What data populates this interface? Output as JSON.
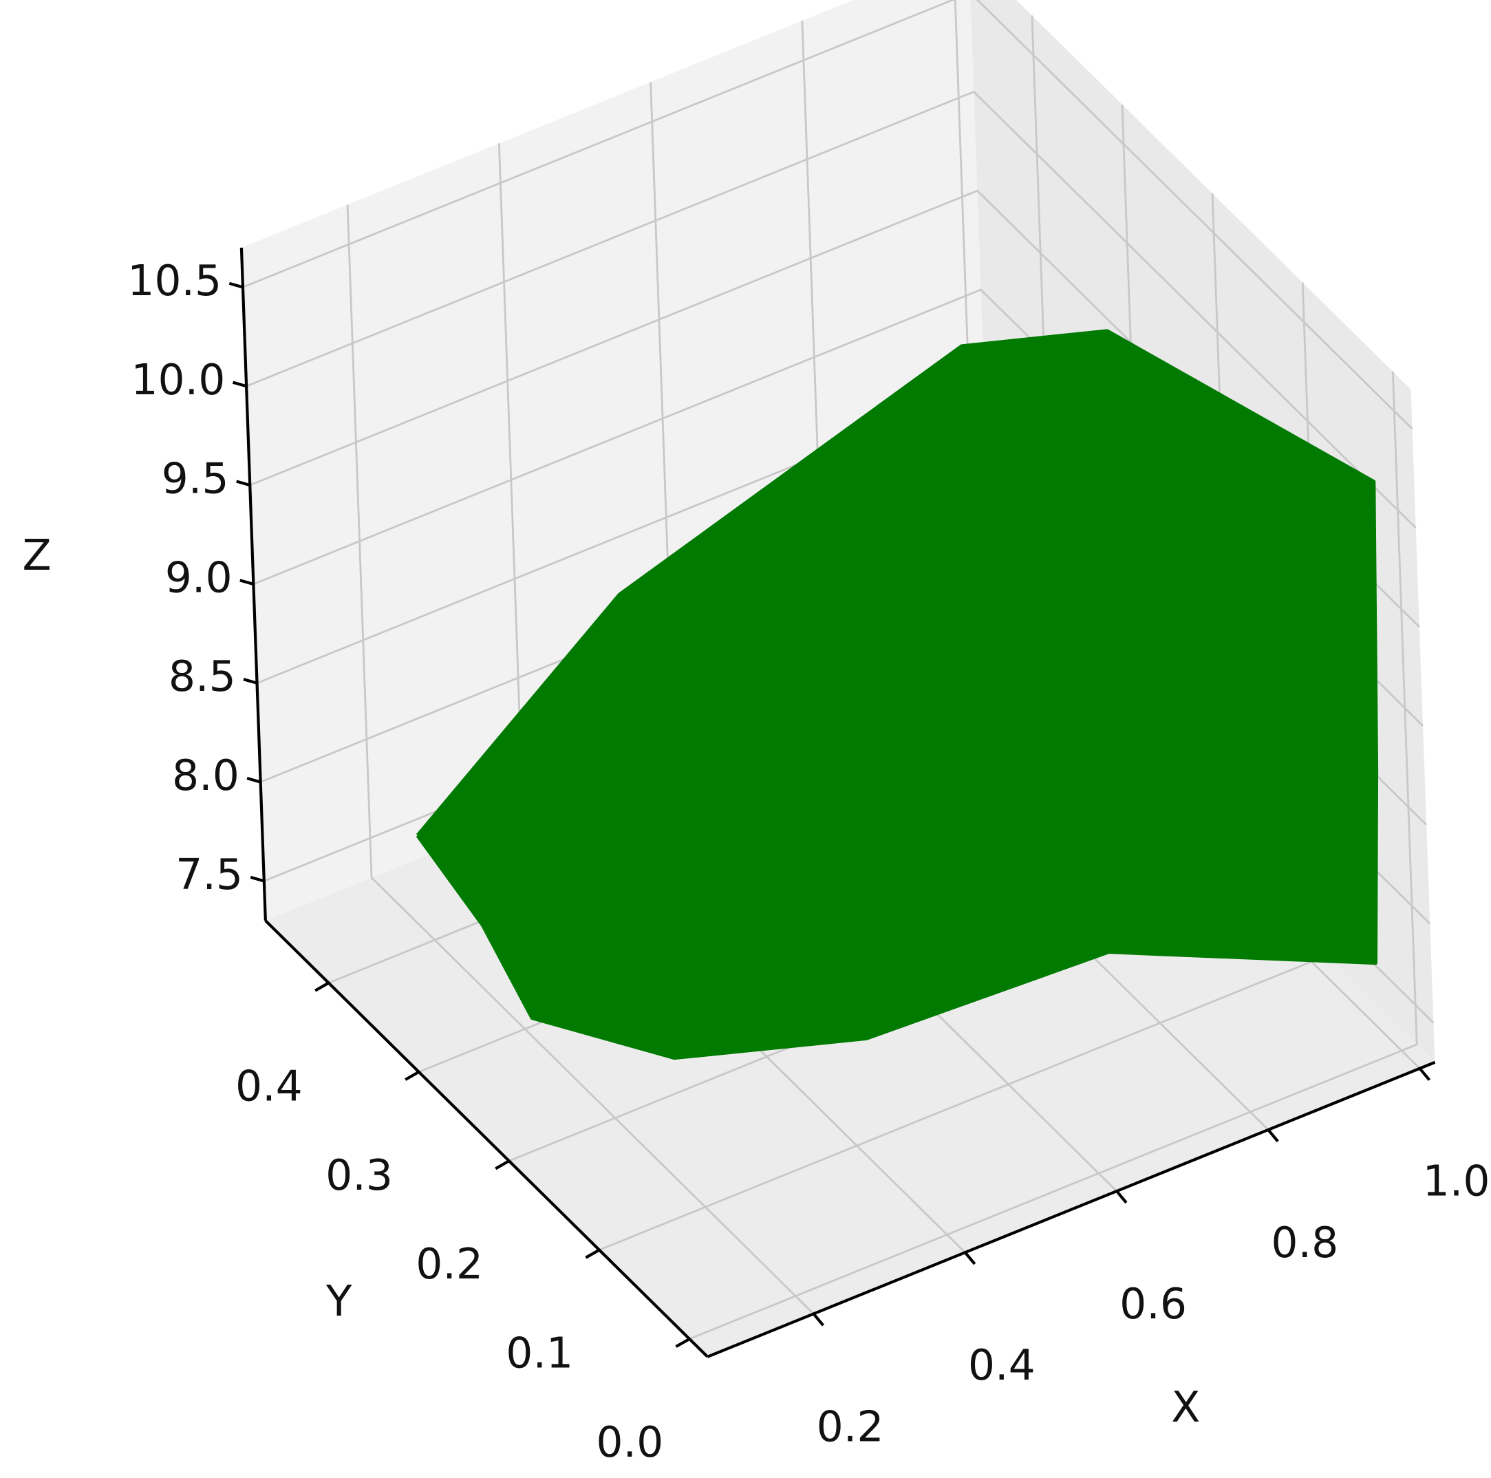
{
  "chart_data": {
    "type": "line3d",
    "xlabel": "X",
    "ylabel": "Y",
    "zlabel": "Z",
    "xlim": [
      0.06,
      1.02
    ],
    "ylim": [
      -0.02,
      0.47
    ],
    "zlim": [
      7.3,
      10.7
    ],
    "xticks": [
      0.2,
      0.4,
      0.6,
      0.8,
      {
        "value": 1,
        "label": "1.0"
      }
    ],
    "yticks": [
      {
        "value": 0,
        "label": "0.0"
      },
      0.1,
      0.2,
      0.3,
      0.4
    ],
    "zticks": [
      7.5,
      {
        "value": 8,
        "label": "8.0"
      },
      8.5,
      {
        "value": 9,
        "label": "9.0"
      },
      9.5,
      {
        "value": 10,
        "label": "10.0"
      },
      10.5
    ],
    "grid": true,
    "series": [
      {
        "color": "#007a00",
        "x": [
          0.16,
          0.4,
          0.8,
          0.82,
          0.99,
          0.98,
          0.97,
          0.68,
          0.44,
          0.28,
          0.21,
          0.17,
          0.41,
          0.79,
          0.81,
          0.97,
          0.96,
          0.95,
          0.67,
          0.43,
          0.28,
          0.22,
          0.16
        ],
        "y": [
          0.38,
          0.35,
          0.3,
          0.15,
          0.0,
          0.0,
          0.0,
          0.05,
          0.12,
          0.2,
          0.3,
          0.37,
          0.34,
          0.29,
          0.15,
          0.01,
          0.01,
          0.01,
          0.06,
          0.13,
          0.21,
          0.3,
          0.38
        ],
        "z": [
          7.98,
          8.96,
          9.82,
          10.54,
          10.19,
          8.75,
          7.79,
          8.07,
          7.69,
          7.48,
          7.34,
          8.02,
          8.92,
          9.76,
          10.45,
          10.12,
          8.72,
          7.84,
          8.1,
          7.74,
          7.54,
          7.4,
          7.98
        ]
      }
    ]
  }
}
